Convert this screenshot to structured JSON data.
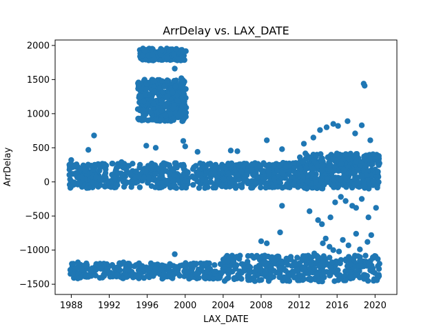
{
  "chart_data": {
    "type": "scatter",
    "title": "ArrDelay vs. LAX_DATE",
    "xlabel": "LAX_DATE",
    "ylabel": "ArrDelay",
    "xlim": [
      1986.3,
      2022.3
    ],
    "ylim": [
      -1650,
      2080
    ],
    "xticks": [
      "1988",
      "1992",
      "1996",
      "2000",
      "2004",
      "2008",
      "2012",
      "2016",
      "2020"
    ],
    "yticks": [
      "-1500",
      "-1000",
      "-500",
      "0",
      "500",
      "1000",
      "1500",
      "2000"
    ],
    "grid": false,
    "legend": "none",
    "color": "#1f77b4",
    "point_groups": [
      {
        "name": "main-band-1988-2012",
        "x_range": [
          1987.8,
          2012.0
        ],
        "y_range": [
          -90,
          280
        ],
        "count": 700
      },
      {
        "name": "main-band-2012-2020",
        "x_range": [
          2012.0,
          2020.5
        ],
        "y_range": [
          -100,
          420
        ],
        "count": 420
      },
      {
        "name": "upper-cluster-1995-2000",
        "x_range": [
          1995.0,
          2000.1
        ],
        "y_range": [
          890,
          1500
        ],
        "count": 360
      },
      {
        "name": "top-cluster-1995-2000",
        "x_range": [
          1995.2,
          2000.1
        ],
        "y_range": [
          1780,
          1960
        ],
        "count": 140
      },
      {
        "name": "low-band-1988-2004",
        "x_range": [
          1987.9,
          2004.0
        ],
        "y_range": [
          -1420,
          -1190
        ],
        "count": 300
      },
      {
        "name": "low-band-2004-2020",
        "x_range": [
          2004.0,
          2020.5
        ],
        "y_range": [
          -1460,
          -1080
        ],
        "count": 380
      }
    ],
    "points": [
      [
        1988.0,
        320
      ],
      [
        1988.4,
        230
      ],
      [
        1989.8,
        470
      ],
      [
        1990.4,
        680
      ],
      [
        1991.5,
        260
      ],
      [
        1993.3,
        290
      ],
      [
        1995.2,
        210
      ],
      [
        1995.9,
        530
      ],
      [
        1996.9,
        500
      ],
      [
        1998.9,
        1660
      ],
      [
        1999.6,
        1520
      ],
      [
        1999.8,
        600
      ],
      [
        2000.0,
        520
      ],
      [
        2001.3,
        440
      ],
      [
        2004.8,
        460
      ],
      [
        2005.5,
        450
      ],
      [
        2008.6,
        610
      ],
      [
        2010.2,
        480
      ],
      [
        2012.5,
        560
      ],
      [
        2013.5,
        650
      ],
      [
        2014.2,
        760
      ],
      [
        2014.9,
        800
      ],
      [
        2015.6,
        850
      ],
      [
        2016.1,
        820
      ],
      [
        2017.1,
        890
      ],
      [
        2017.9,
        710
      ],
      [
        2018.6,
        830
      ],
      [
        2018.8,
        1440
      ],
      [
        2018.9,
        1410
      ],
      [
        2019.5,
        610
      ],
      [
        2016.4,
        -220
      ],
      [
        2015.8,
        -300
      ],
      [
        2016.9,
        -280
      ],
      [
        2017.6,
        -350
      ],
      [
        2018.0,
        -380
      ],
      [
        2019.3,
        -520
      ],
      [
        2020.1,
        -380
      ],
      [
        2018.6,
        -250
      ],
      [
        2010.2,
        -350
      ],
      [
        2013.1,
        -430
      ],
      [
        2014.0,
        -560
      ],
      [
        2014.4,
        -620
      ],
      [
        2015.3,
        -520
      ],
      [
        2014.5,
        -900
      ],
      [
        2014.8,
        -830
      ],
      [
        2015.2,
        -950
      ],
      [
        2015.6,
        -1000
      ],
      [
        2016.6,
        -850
      ],
      [
        2017.2,
        -930
      ],
      [
        2018.0,
        -760
      ],
      [
        2018.4,
        -990
      ],
      [
        2019.2,
        -880
      ],
      [
        2019.6,
        -780
      ],
      [
        2008.0,
        -870
      ],
      [
        2008.6,
        -900
      ],
      [
        2010.0,
        -740
      ],
      [
        2011.8,
        -1110
      ],
      [
        1987.9,
        -1290
      ],
      [
        1988.7,
        -1180
      ],
      [
        1990.6,
        -1290
      ],
      [
        1992.0,
        -1330
      ],
      [
        1993.4,
        -1410
      ],
      [
        1993.5,
        -1180
      ],
      [
        1995.1,
        -1380
      ],
      [
        1998.9,
        -1060
      ],
      [
        2013.6,
        -1050
      ],
      [
        2016.2,
        -1020
      ]
    ]
  }
}
